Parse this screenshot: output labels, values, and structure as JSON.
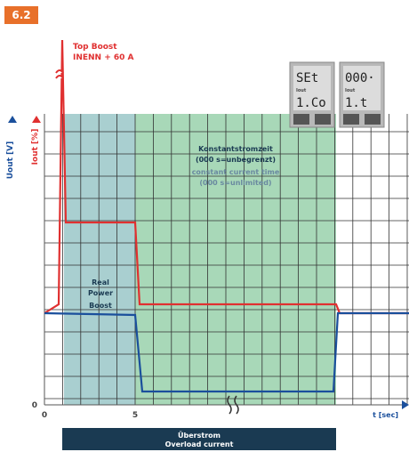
{
  "badge": "6.2",
  "top_boost": {
    "title": "Top Boost",
    "subtitle": "INENN + 60 A"
  },
  "axes": {
    "y_left_voltage": "Uout [V]",
    "y_left_current": "Iout [%]",
    "y_zero": "0",
    "x_zero": "0",
    "x_five": "5",
    "x_label": "t [sec]"
  },
  "zones": {
    "real_power_boost": [
      "Real",
      "Power",
      "Boost"
    ],
    "constant_current": {
      "de_title": "Konstantstromzeit",
      "de_note": "(000 s=unbegrenzt)",
      "en_title": "constant current time",
      "en_note": "(000 s=unlimited)"
    }
  },
  "displays": [
    {
      "top": "SEt",
      "label": "Iout",
      "bottom": "1.Co"
    },
    {
      "top": "000·",
      "label": "Iout",
      "bottom": "1.t"
    }
  ],
  "footer": {
    "de": "Überstrom",
    "en": "Overload current"
  }
}
